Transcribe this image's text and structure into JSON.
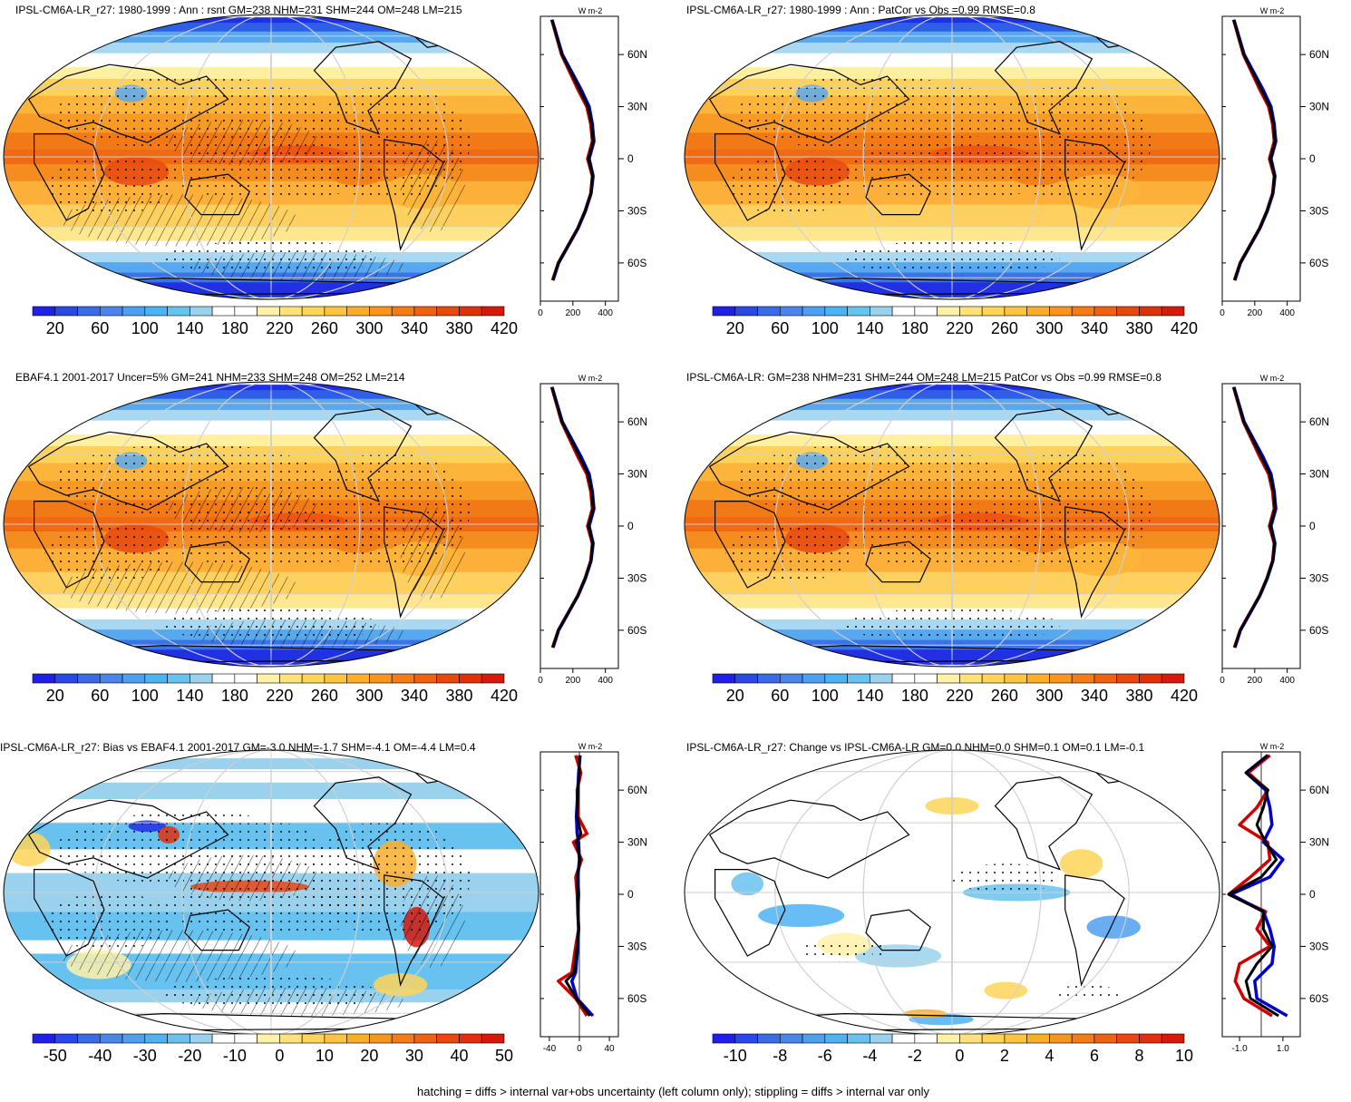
{
  "panels": [
    {
      "title": "IPSL-CM6A-LR_r27: 1980-1999 : Ann : rsnt GM=238 NHM=231 SHM=244 OM=248 LM=215",
      "scale": "abs",
      "hatch": true,
      "stipple": true
    },
    {
      "title": "IPSL-CM6A-LR_r27: 1980-1999 : Ann : PatCor vs Obs =0.99 RMSE=0.8",
      "scale": "abs",
      "hatch": false,
      "stipple": true
    },
    {
      "title": "EBAF4.1 2001-2017 Uncer=5% GM=241 NHM=233 SHM=248 OM=252 LM=214",
      "scale": "abs",
      "hatch": true,
      "stipple": true
    },
    {
      "title": "IPSL-CM6A-LR: GM=238 NHM=231 SHM=244 OM=248 LM=215 PatCor vs Obs =0.99 RMSE=0.8",
      "scale": "abs",
      "hatch": false,
      "stipple": true
    },
    {
      "title": "IPSL-CM6A-LR_r27: Bias vs EBAF4.1 2001-2017 GM=-3.0 NHM=-1.7 SHM=-4.1 OM=-4.4 LM=0.4",
      "scale": "bias",
      "hatch": true,
      "stipple": true
    },
    {
      "title": "IPSL-CM6A-LR_r27: Change vs IPSL-CM6A-LR GM=0.0 NHM=0.0 SHM=0.1 OM=0.1 LM=-0.1",
      "scale": "change",
      "hatch": false,
      "stipple": true
    }
  ],
  "colorbars": {
    "abs": {
      "labels": [
        "20",
        "60",
        "100",
        "140",
        "180",
        "220",
        "260",
        "300",
        "340",
        "380",
        "420"
      ],
      "colors": [
        "#1f1fe8",
        "#2a48e6",
        "#3b6ae6",
        "#4a86ea",
        "#4f9ff0",
        "#4cb2f2",
        "#68c2f0",
        "#9ad2ee",
        "#ffffff",
        "#ffffff",
        "#fff1a8",
        "#ffe37a",
        "#fed558",
        "#fdc43f",
        "#fcae2a",
        "#f8951e",
        "#f47c17",
        "#ee6212",
        "#e8470e",
        "#e0300b",
        "#d6190b"
      ]
    },
    "bias": {
      "labels": [
        "-50",
        "-40",
        "-30",
        "-20",
        "-10",
        "0",
        "10",
        "20",
        "30",
        "40",
        "50"
      ],
      "colors": [
        "#1f1fe8",
        "#2a48e6",
        "#3b6ae6",
        "#4a86ea",
        "#4f9ff0",
        "#4cb2f2",
        "#68c2f0",
        "#9ad2ee",
        "#ffffff",
        "#ffffff",
        "#fff1a8",
        "#ffe37a",
        "#fed558",
        "#fdc43f",
        "#fcae2a",
        "#f8951e",
        "#f47c17",
        "#ee6212",
        "#e8470e",
        "#e0300b",
        "#d6190b"
      ]
    },
    "change": {
      "labels": [
        "-10",
        "-8",
        "-6",
        "-4",
        "-2",
        "0",
        "2",
        "4",
        "6",
        "8",
        "10"
      ],
      "colors": [
        "#1f1fe8",
        "#2a48e6",
        "#3b6ae6",
        "#4a86ea",
        "#4f9ff0",
        "#4cb2f2",
        "#68c2f0",
        "#9ad2ee",
        "#ffffff",
        "#ffffff",
        "#fff1a8",
        "#ffe37a",
        "#fed558",
        "#fdc43f",
        "#fcae2a",
        "#f8951e",
        "#f47c17",
        "#ee6212",
        "#e8470e",
        "#e0300b",
        "#d6190b"
      ]
    }
  },
  "zonal": {
    "unit": "W m-2",
    "lat_ticks": [
      "60N",
      "30N",
      "0",
      "30S",
      "60S"
    ],
    "x_ticks_abs": [
      "0",
      "200",
      "400"
    ],
    "x_ticks_bias": [
      "-40",
      "0",
      "40"
    ],
    "x_ticks_change": [
      "-1.0",
      "1.0"
    ]
  },
  "chart_data": [
    {
      "type": "heatmap",
      "title": "IPSL-CM6A-LR_r27: 1980-1999 : Ann : rsnt GM=238 NHM=231 SHM=244 OM=248 LM=215",
      "series": [
        {
          "color": "#d00000",
          "lat": [
            80,
            60,
            40,
            30,
            20,
            10,
            0,
            -10,
            -20,
            -30,
            -40,
            -60,
            -70
          ],
          "values": [
            70,
            130,
            230,
            285,
            310,
            320,
            290,
            320,
            310,
            275,
            230,
            110,
            75
          ]
        },
        {
          "color": "#0000cc",
          "lat": [
            80,
            60,
            40,
            30,
            20,
            10,
            0,
            -10,
            -20,
            -30,
            -40,
            -60,
            -70
          ],
          "values": [
            72,
            135,
            250,
            300,
            320,
            330,
            300,
            325,
            312,
            278,
            232,
            112,
            78
          ]
        },
        {
          "color": "#000000",
          "lat": [
            80,
            60,
            40,
            30,
            20,
            10,
            0,
            -10,
            -20,
            -30,
            -40,
            -60,
            -70
          ],
          "values": [
            71,
            132,
            240,
            292,
            315,
            325,
            295,
            322,
            311,
            276,
            231,
            111,
            76
          ]
        }
      ]
    },
    {
      "type": "heatmap",
      "title": "IPSL-CM6A-LR_r27: 1980-1999 : Ann : PatCor vs Obs =0.99 RMSE=0.8",
      "series": [
        {
          "color": "#d00000",
          "lat": [
            80,
            60,
            40,
            30,
            20,
            10,
            0,
            -10,
            -20,
            -30,
            -40,
            -60,
            -70
          ],
          "values": [
            70,
            130,
            230,
            285,
            310,
            320,
            290,
            320,
            310,
            275,
            230,
            110,
            75
          ]
        },
        {
          "color": "#0000cc",
          "lat": [
            80,
            60,
            40,
            30,
            20,
            10,
            0,
            -10,
            -20,
            -30,
            -40,
            -60,
            -70
          ],
          "values": [
            72,
            135,
            250,
            300,
            320,
            330,
            300,
            325,
            312,
            278,
            232,
            112,
            78
          ]
        },
        {
          "color": "#000000",
          "lat": [
            80,
            60,
            40,
            30,
            20,
            10,
            0,
            -10,
            -20,
            -30,
            -40,
            -60,
            -70
          ],
          "values": [
            71,
            132,
            240,
            292,
            315,
            325,
            295,
            322,
            311,
            276,
            231,
            111,
            76
          ]
        }
      ]
    },
    {
      "type": "heatmap",
      "title": "EBAF4.1 2001-2017 Uncer=5% GM=241 NHM=233 SHM=248 OM=252 LM=214",
      "series": [
        {
          "color": "#d00000",
          "lat": [
            80,
            60,
            40,
            30,
            20,
            10,
            0,
            -10,
            -20,
            -30,
            -40,
            -60,
            -70
          ],
          "values": [
            70,
            130,
            230,
            285,
            310,
            320,
            290,
            320,
            310,
            275,
            230,
            110,
            75
          ]
        },
        {
          "color": "#0000cc",
          "lat": [
            80,
            60,
            40,
            30,
            20,
            10,
            0,
            -10,
            -20,
            -30,
            -40,
            -60,
            -70
          ],
          "values": [
            72,
            135,
            250,
            300,
            320,
            330,
            300,
            325,
            312,
            278,
            232,
            112,
            78
          ]
        },
        {
          "color": "#000000",
          "lat": [
            80,
            60,
            40,
            30,
            20,
            10,
            0,
            -10,
            -20,
            -30,
            -40,
            -60,
            -70
          ],
          "values": [
            71,
            132,
            240,
            292,
            315,
            325,
            295,
            322,
            311,
            276,
            231,
            111,
            76
          ]
        }
      ]
    },
    {
      "type": "heatmap",
      "title": "IPSL-CM6A-LR: GM=238 NHM=231 SHM=244 OM=248 LM=215 PatCor vs Obs =0.99 RMSE=0.8",
      "series": [
        {
          "color": "#d00000",
          "lat": [
            80,
            60,
            40,
            30,
            20,
            10,
            0,
            -10,
            -20,
            -30,
            -40,
            -60,
            -70
          ],
          "values": [
            70,
            130,
            230,
            285,
            310,
            320,
            290,
            320,
            310,
            275,
            230,
            110,
            75
          ]
        },
        {
          "color": "#0000cc",
          "lat": [
            80,
            60,
            40,
            30,
            20,
            10,
            0,
            -10,
            -20,
            -30,
            -40,
            -60,
            -70
          ],
          "values": [
            72,
            135,
            250,
            300,
            320,
            330,
            300,
            325,
            312,
            278,
            232,
            112,
            78
          ]
        },
        {
          "color": "#000000",
          "lat": [
            80,
            60,
            40,
            30,
            20,
            10,
            0,
            -10,
            -20,
            -30,
            -40,
            -60,
            -70
          ],
          "values": [
            71,
            132,
            240,
            292,
            315,
            325,
            295,
            322,
            311,
            276,
            231,
            111,
            76
          ]
        }
      ]
    },
    {
      "type": "heatmap",
      "title": "IPSL-CM6A-LR_r27: Bias vs EBAF4.1 2001-2017 GM=-3.0 NHM=-1.7 SHM=-4.1 OM=-4.4 LM=0.4",
      "series": [
        {
          "color": "#d00000",
          "lat": [
            80,
            70,
            60,
            45,
            35,
            30,
            20,
            10,
            0,
            -10,
            -20,
            -30,
            -45,
            -50,
            -60,
            -70
          ],
          "values": [
            -5,
            2,
            -3,
            -2,
            10,
            -8,
            3,
            -5,
            -3,
            -2,
            -1,
            -5,
            -10,
            -28,
            -5,
            10
          ]
        },
        {
          "color": "#0000cc",
          "lat": [
            80,
            70,
            60,
            45,
            35,
            30,
            20,
            10,
            0,
            -10,
            -20,
            -30,
            -45,
            -50,
            -60,
            -70
          ],
          "values": [
            1,
            -1,
            -2,
            -4,
            -3,
            -1,
            0,
            -2,
            -1,
            -2,
            -1,
            -2,
            -5,
            -10,
            -3,
            18
          ]
        },
        {
          "color": "#000000",
          "lat": [
            80,
            70,
            60,
            45,
            35,
            30,
            20,
            10,
            0,
            -10,
            -20,
            -30,
            -45,
            -50,
            -60,
            -70
          ],
          "values": [
            0,
            0,
            -2,
            -3,
            2,
            -4,
            1,
            -3,
            -2,
            -2,
            -1,
            -3,
            -7,
            -18,
            -4,
            14
          ]
        }
      ]
    },
    {
      "type": "heatmap",
      "title": "IPSL-CM6A-LR_r27: Change vs IPSL-CM6A-LR GM=0.0 NHM=0.0 SHM=0.1 OM=0.1 LM=-0.1",
      "series": [
        {
          "color": "#d00000",
          "lat": [
            80,
            70,
            60,
            50,
            40,
            30,
            20,
            10,
            0,
            -10,
            -20,
            -30,
            -40,
            -50,
            -60,
            -70
          ],
          "values": [
            0.4,
            -0.6,
            0.3,
            -0.2,
            -1.0,
            0.3,
            0.4,
            -0.5,
            -1.5,
            0.2,
            -0.2,
            0.4,
            -1.0,
            -1.2,
            -0.8,
            0.5
          ]
        },
        {
          "color": "#0000cc",
          "lat": [
            80,
            70,
            60,
            50,
            40,
            30,
            20,
            10,
            0,
            -10,
            -20,
            -30,
            -40,
            -50,
            -60,
            -70
          ],
          "values": [
            0.3,
            -0.7,
            0.2,
            0.4,
            0.5,
            0.1,
            1.0,
            0.4,
            -1.4,
            0.1,
            0.4,
            0.6,
            0.5,
            -0.3,
            -0.2,
            1.2
          ]
        },
        {
          "color": "#000000",
          "lat": [
            80,
            70,
            60,
            50,
            40,
            30,
            20,
            10,
            0,
            -10,
            -20,
            -30,
            -40,
            -50,
            -60,
            -70
          ],
          "values": [
            0.3,
            -0.7,
            0.3,
            0.1,
            -0.2,
            0.2,
            0.7,
            0.0,
            -1.5,
            0.1,
            0.1,
            0.5,
            -0.2,
            -0.7,
            -0.5,
            0.8
          ]
        }
      ]
    }
  ],
  "footer": "hatching = diffs > internal var+obs uncertainty (left column only); stippling = diffs > internal var only"
}
